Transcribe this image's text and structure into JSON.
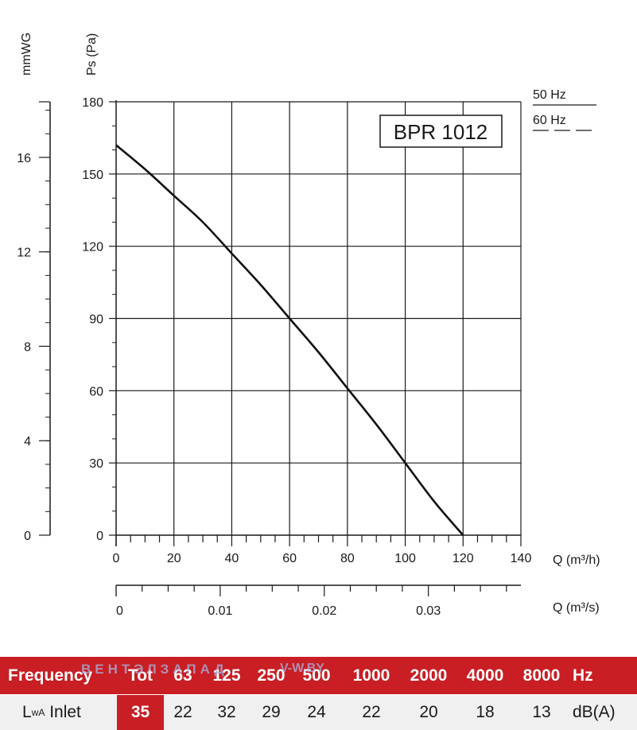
{
  "chart_data": {
    "type": "line",
    "model_label": "BPR 1012",
    "x_label_primary": "Q (m³/h)",
    "x_label_secondary": "Q (m³/s)",
    "y_label_primary": "Ps (Pa)",
    "y_label_secondary": "mmWG",
    "xlim": [
      0,
      140
    ],
    "ylim": [
      0,
      180
    ],
    "x_ticks": [
      "0",
      "20",
      "40",
      "60",
      "80",
      "100",
      "120",
      "140"
    ],
    "y_ticks": [
      "0",
      "30",
      "60",
      "90",
      "120",
      "150",
      "180"
    ],
    "secondary_x_ticks": [
      "0",
      "0.01",
      "0.02",
      "0.03"
    ],
    "secondary_x_tick_values": [
      0,
      0.01,
      0.02,
      0.03
    ],
    "secondary_y_ticks": [
      "0",
      "4",
      "8",
      "12",
      "16"
    ],
    "secondary_y_tick_values": [
      0,
      4,
      8,
      12,
      16
    ],
    "legend": [
      {
        "label": "50 Hz",
        "style": "solid"
      },
      {
        "label": "60 Hz",
        "style": "dashed"
      }
    ],
    "grid": true,
    "series": [
      {
        "name": "50 Hz",
        "x": [
          0,
          10,
          20,
          30,
          40,
          50,
          60,
          70,
          80,
          90,
          100,
          110,
          120
        ],
        "y": [
          162,
          152,
          141,
          130,
          117,
          104,
          90,
          76,
          61,
          46,
          30,
          14,
          0
        ]
      }
    ]
  },
  "noise_table": {
    "header": {
      "label": "Frequency",
      "cells": [
        "Tot",
        "63",
        "125",
        "250",
        "500",
        "1000",
        "2000",
        "4000",
        "8000",
        "Hz"
      ]
    },
    "row": {
      "label_main": "L",
      "label_sub": "wA",
      "label_suffix": " Inlet",
      "cells": [
        "35",
        "22",
        "32",
        "29",
        "24",
        "22",
        "20",
        "18",
        "13",
        "dB(A)"
      ]
    },
    "watermark": "ВЕНТЭЛЗАПАД",
    "watermark_site": "V-W.BY"
  }
}
